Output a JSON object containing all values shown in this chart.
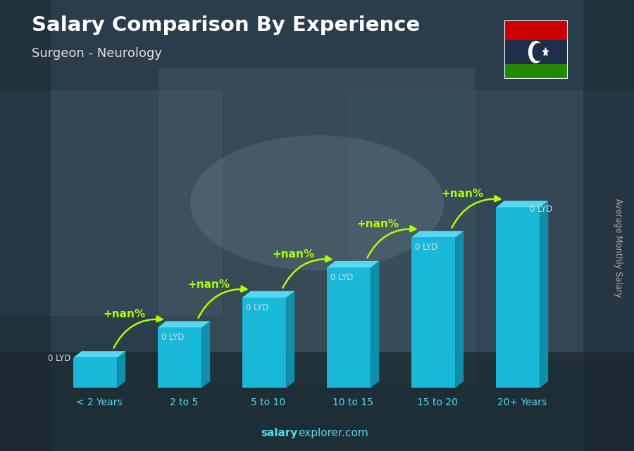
{
  "title": "Salary Comparison By Experience",
  "subtitle": "Surgeon - Neurology",
  "categories": [
    "< 2 Years",
    "2 to 5",
    "5 to 10",
    "10 to 15",
    "15 to 20",
    "20+ Years"
  ],
  "bar_heights": [
    1.0,
    2.0,
    3.0,
    4.0,
    5.0,
    6.0
  ],
  "bar_color_front": "#1ab8d8",
  "bar_color_top": "#55d8f0",
  "bar_color_side": "#0e8faa",
  "salary_labels": [
    "0 LYD",
    "0 LYD",
    "0 LYD",
    "0 LYD",
    "0 LYD",
    "0 LYD"
  ],
  "pct_labels": [
    "+nan%",
    "+nan%",
    "+nan%",
    "+nan%",
    "+nan%"
  ],
  "title_color": "#ffffff",
  "subtitle_color": "#dddddd",
  "pct_color": "#aaff00",
  "salary_label_color": "#dddddd",
  "xticklabel_color": "#55d8f0",
  "bg_color1": "#3a5060",
  "bg_color2": "#1a2830",
  "watermark_bold": "salary",
  "watermark_normal": "explorer.com",
  "watermark_color": "#55d8f0",
  "ylabel": "Average Monthly Salary",
  "ylabel_color": "#aaaaaa",
  "flag_red": "#cc0000",
  "flag_dark": "#1e2d4a",
  "flag_green": "#228800"
}
